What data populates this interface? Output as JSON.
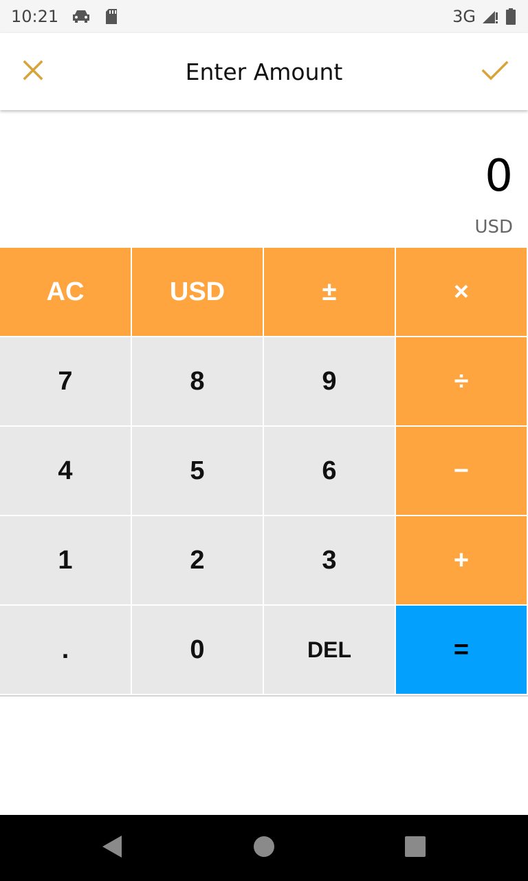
{
  "status_bar": {
    "time": "10:21",
    "network": "3G",
    "icons": [
      "car-icon",
      "sd-card-icon",
      "signal-icon",
      "battery-icon"
    ]
  },
  "toolbar": {
    "title": "Enter Amount",
    "close_icon": "close-icon",
    "confirm_icon": "check-icon",
    "accent_color": "#d9a33a"
  },
  "display": {
    "value": "0",
    "currency": "USD"
  },
  "keypad": {
    "row1": [
      "AC",
      "USD",
      "±",
      "×"
    ],
    "row2": [
      "7",
      "8",
      "9",
      "÷"
    ],
    "row3": [
      "4",
      "5",
      "6",
      "−"
    ],
    "row4": [
      "1",
      "2",
      "3",
      "+"
    ],
    "row5": [
      ".",
      "0",
      "DEL",
      "="
    ],
    "colors": {
      "operator": "#ffa53f",
      "digit": "#e8e8e8",
      "equals": "#03a0fe"
    }
  },
  "nav_bar": {
    "icons": [
      "back-icon",
      "home-icon",
      "recents-icon"
    ]
  }
}
